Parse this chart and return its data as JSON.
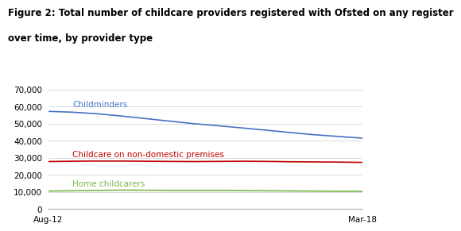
{
  "title_line1": "Figure 2: Total number of childcare providers registered with Ofsted on any register",
  "title_line2": "over time, by provider type",
  "xlabel_start": "Aug-12",
  "xlabel_end": "Mar-18",
  "ylim": [
    0,
    70000
  ],
  "yticks": [
    0,
    10000,
    20000,
    30000,
    40000,
    50000,
    60000,
    70000
  ],
  "series": {
    "Childminders": {
      "color": "#4472C4",
      "data": [
        57200,
        56700,
        55800,
        54500,
        53000,
        51500,
        50000,
        48800,
        47500,
        46200,
        44800,
        43500,
        42500,
        41500
      ]
    },
    "Childcare on non-domestic premises": {
      "color": "#C00000",
      "data": [
        27800,
        28000,
        28100,
        28100,
        28000,
        27900,
        27800,
        27900,
        28000,
        27900,
        27700,
        27600,
        27500,
        27300
      ]
    },
    "Home childcarers": {
      "color": "#7AB648",
      "data": [
        10500,
        10700,
        10900,
        11100,
        11000,
        10900,
        10900,
        10900,
        10800,
        10700,
        10600,
        10500,
        10400,
        10400
      ]
    }
  },
  "labels": {
    "Childminders": {
      "xi": 1,
      "y": 59000
    },
    "Childcare on non-domestic premises": {
      "xi": 1,
      "y": 29800
    },
    "Home childcarers": {
      "xi": 1,
      "y": 12300
    }
  },
  "background_color": "#ffffff",
  "title_fontsize": 8.5,
  "label_fontsize": 7.5,
  "tick_fontsize": 7.5
}
